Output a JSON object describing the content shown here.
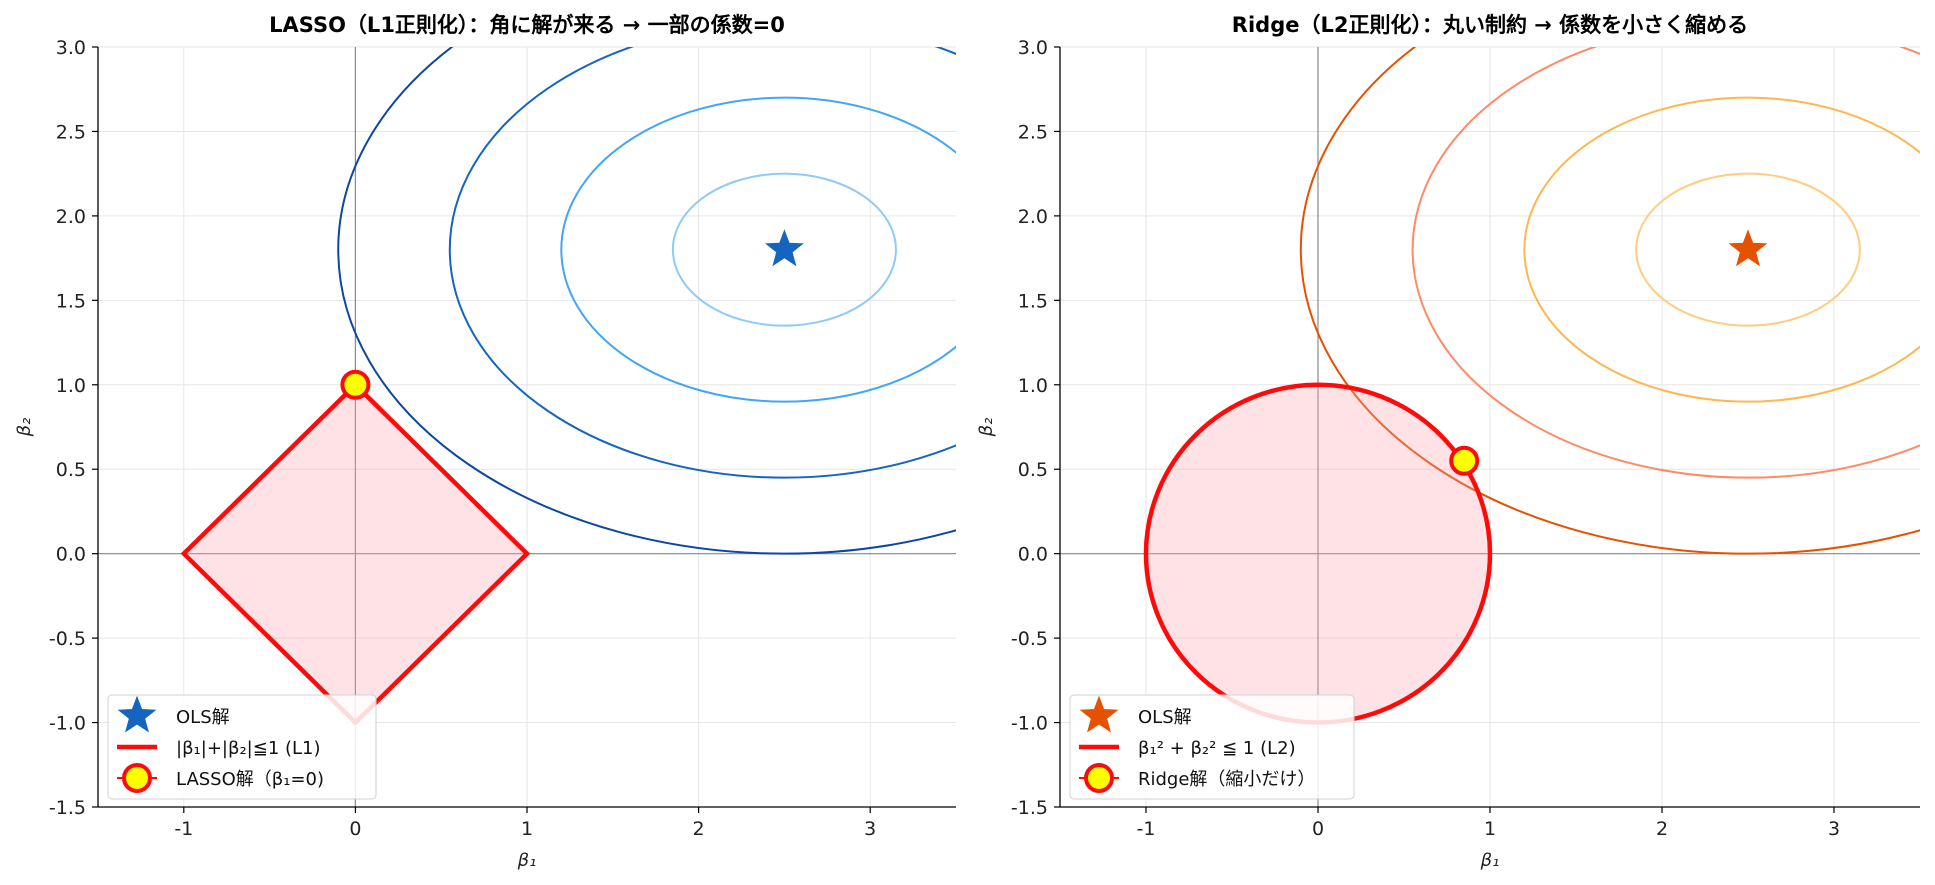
{
  "charts": [
    {
      "id": "lasso",
      "title": "LASSO（L1正則化）：角に解が来る → 一部の係数=0",
      "xlabel": "β₁",
      "ylabel": "β₂",
      "contour_colors": [
        "#0d47a1",
        "#1565c0",
        "#42a5f5",
        "#90caf9"
      ],
      "ols_color": "#1565c0",
      "legend": [
        "OLS解",
        "|β₁|+|β₂|≦1 (L1)",
        "LASSO解（β₁=0)"
      ]
    },
    {
      "id": "ridge",
      "title": "Ridge（L2正則化）：丸い制約 → 係数を小さく縮める",
      "xlabel": "β₁",
      "ylabel": "β₂",
      "contour_colors": [
        "#e65100",
        "#ff8a65",
        "#ffb74d",
        "#ffcc80"
      ],
      "ols_color": "#e65100",
      "legend": [
        "OLS解",
        "β₁² + β₂² ≦ 1 (L2)",
        "Ridge解（縮小だけ）"
      ]
    }
  ],
  "chart_data": [
    {
      "type": "line",
      "title": "LASSO（L1正則化）：角に解が来る → 一部の係数=0",
      "xlabel": "β₁",
      "ylabel": "β₂",
      "xlim": [
        -1.5,
        3.5
      ],
      "ylim": [
        -1.5,
        3.0
      ],
      "xticks": [
        -1,
        0,
        1,
        2,
        3
      ],
      "yticks": [
        -1.5,
        -1.0,
        -0.5,
        0.0,
        0.5,
        1.0,
        1.5,
        2.0,
        2.5,
        3.0
      ],
      "grid": true,
      "legend_position": "lower-left",
      "ols_solution": [
        2.5,
        1.8
      ],
      "contour_ellipses": [
        {
          "center": [
            2.5,
            1.8
          ],
          "rx": 0.65,
          "ry": 0.45
        },
        {
          "center": [
            2.5,
            1.8
          ],
          "rx": 1.3,
          "ry": 0.9
        },
        {
          "center": [
            2.5,
            1.8
          ],
          "rx": 1.95,
          "ry": 1.35
        },
        {
          "center": [
            2.5,
            1.8
          ],
          "rx": 2.6,
          "ry": 1.8
        }
      ],
      "constraint": {
        "shape": "diamond",
        "vertices": [
          [
            1,
            0
          ],
          [
            0,
            1
          ],
          [
            -1,
            0
          ],
          [
            0,
            -1
          ]
        ]
      },
      "solution": [
        0,
        1
      ]
    },
    {
      "type": "line",
      "title": "Ridge（L2正則化）：丸い制約 → 係数を小さく縮める",
      "xlabel": "β₁",
      "ylabel": "β₂",
      "xlim": [
        -1.5,
        3.5
      ],
      "ylim": [
        -1.5,
        3.0
      ],
      "xticks": [
        -1,
        0,
        1,
        2,
        3
      ],
      "yticks": [
        -1.5,
        -1.0,
        -0.5,
        0.0,
        0.5,
        1.0,
        1.5,
        2.0,
        2.5,
        3.0
      ],
      "grid": true,
      "legend_position": "lower-left",
      "ols_solution": [
        2.5,
        1.8
      ],
      "contour_ellipses": [
        {
          "center": [
            2.5,
            1.8
          ],
          "rx": 0.65,
          "ry": 0.45
        },
        {
          "center": [
            2.5,
            1.8
          ],
          "rx": 1.3,
          "ry": 0.9
        },
        {
          "center": [
            2.5,
            1.8
          ],
          "rx": 1.95,
          "ry": 1.35
        },
        {
          "center": [
            2.5,
            1.8
          ],
          "rx": 2.6,
          "ry": 1.8
        }
      ],
      "constraint": {
        "shape": "circle",
        "center": [
          0,
          0
        ],
        "radius": 1
      },
      "solution": [
        0.85,
        0.55
      ]
    }
  ]
}
